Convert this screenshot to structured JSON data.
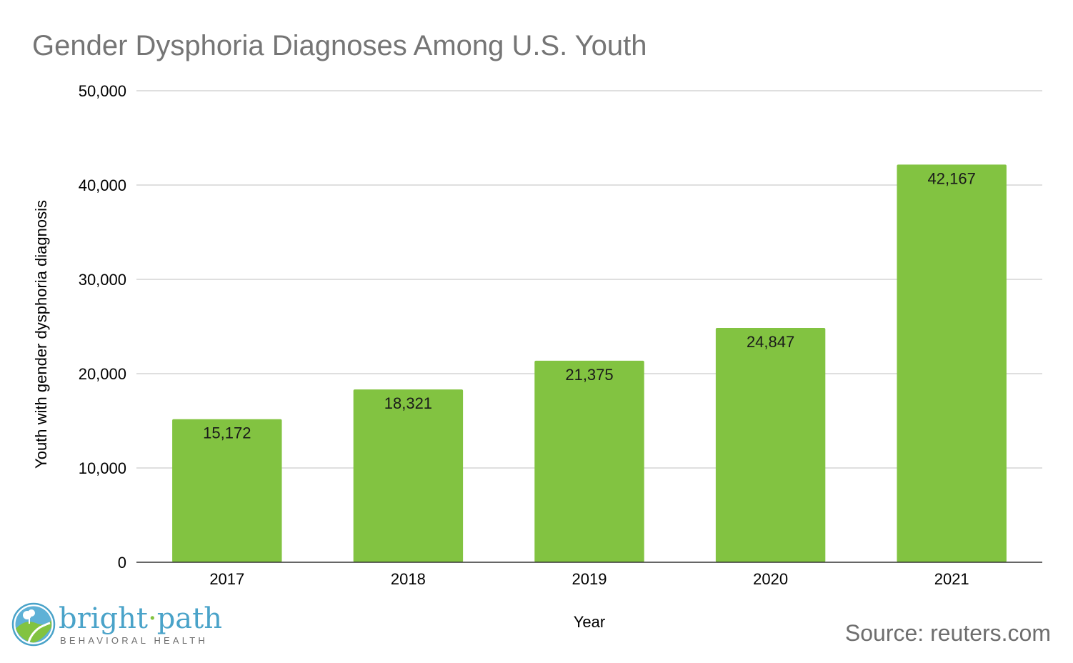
{
  "chart_data": {
    "type": "bar",
    "title": "Gender Dysphoria Diagnoses Among U.S. Youth",
    "xlabel": "Year",
    "ylabel": "Youth with gender dysphoria diagnosis",
    "categories": [
      "2017",
      "2018",
      "2019",
      "2020",
      "2021"
    ],
    "values": [
      15172,
      18321,
      21375,
      24847,
      42167
    ],
    "data_labels": [
      "15,172",
      "18,321",
      "21,375",
      "24,847",
      "42,167"
    ],
    "ylim": [
      0,
      50000
    ],
    "yticks": [
      0,
      10000,
      20000,
      30000,
      40000,
      50000
    ],
    "ytick_labels": [
      "0",
      "10,000",
      "20,000",
      "30,000",
      "40,000",
      "50,000"
    ],
    "grid": true,
    "legend": "none",
    "bar_color": "#82c341"
  },
  "footer": {
    "source": "Source: reuters.com",
    "logo": {
      "word1": "bright",
      "separator": "·",
      "word2": "path",
      "subtitle": "BEHAVIORAL HEALTH"
    }
  },
  "colors": {
    "title": "#757575",
    "gridline": "#cccccc",
    "baseline": "#333333",
    "logo_blue": "#4aa3c9",
    "logo_green": "#82c341"
  }
}
